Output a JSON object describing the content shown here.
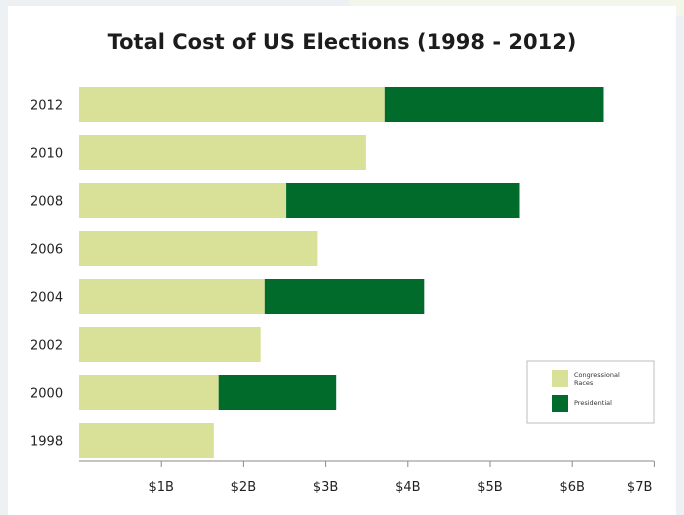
{
  "chart_data": {
    "type": "bar",
    "orientation": "horizontal",
    "stacked": true,
    "title": "Total Cost of US Elections (1998 - 2012)",
    "categories": [
      "2012",
      "2010",
      "2008",
      "2006",
      "2004",
      "2002",
      "2000",
      "1998"
    ],
    "series": [
      {
        "name": "Congressional Races",
        "color": "#d9e199",
        "values": [
          3.72,
          3.49,
          2.52,
          2.9,
          2.26,
          2.21,
          1.7,
          1.64
        ]
      },
      {
        "name": "Presidential",
        "color": "#006b2b",
        "values": [
          2.66,
          0,
          2.84,
          0,
          1.94,
          0,
          1.43,
          0
        ]
      }
    ],
    "x_ticks": [
      "$1B",
      "$2B",
      "$3B",
      "$4B",
      "$5B",
      "$6B",
      "$7B"
    ],
    "x_tick_values": [
      1,
      2,
      3,
      4,
      5,
      6,
      7
    ],
    "xlim": [
      0,
      7
    ],
    "legend_position": "bottom-right",
    "grid": false
  }
}
